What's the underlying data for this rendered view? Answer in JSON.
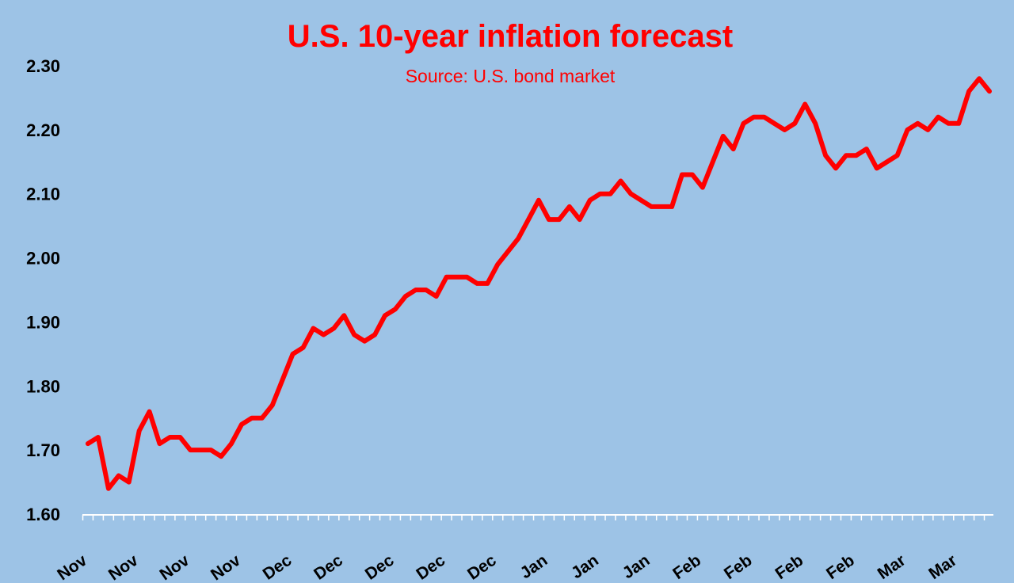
{
  "chart_data": {
    "type": "line",
    "title": "U.S. 10-year inflation forecast",
    "subtitle": "Source: U.S. bond market",
    "xlabel": "",
    "ylabel": "",
    "ylim": [
      1.6,
      2.3
    ],
    "yticks": [
      "1.60",
      "1.70",
      "1.80",
      "1.90",
      "2.00",
      "2.10",
      "2.20",
      "2.30"
    ],
    "ytick_values": [
      1.6,
      1.7,
      1.8,
      1.9,
      2.0,
      2.1,
      2.2,
      2.3
    ],
    "xtick_labels": [
      "Nov",
      "Nov",
      "Nov",
      "Nov",
      "Dec",
      "Dec",
      "Dec",
      "Dec",
      "Dec",
      "Jan",
      "Jan",
      "Jan",
      "Feb",
      "Feb",
      "Feb",
      "Feb",
      "Mar",
      "Mar"
    ],
    "grid": false,
    "line_color": "#ff0000",
    "background_color": "#9dc3e6",
    "series": [
      {
        "name": "10-year inflation forecast",
        "values": [
          1.71,
          1.72,
          1.64,
          1.66,
          1.65,
          1.73,
          1.76,
          1.71,
          1.72,
          1.72,
          1.7,
          1.7,
          1.7,
          1.69,
          1.71,
          1.74,
          1.75,
          1.75,
          1.77,
          1.81,
          1.85,
          1.86,
          1.89,
          1.88,
          1.89,
          1.91,
          1.88,
          1.87,
          1.88,
          1.91,
          1.92,
          1.94,
          1.95,
          1.95,
          1.94,
          1.97,
          1.97,
          1.97,
          1.96,
          1.96,
          1.99,
          2.01,
          2.03,
          2.06,
          2.09,
          2.06,
          2.06,
          2.08,
          2.06,
          2.09,
          2.1,
          2.1,
          2.12,
          2.1,
          2.09,
          2.08,
          2.08,
          2.08,
          2.13,
          2.13,
          2.11,
          2.15,
          2.19,
          2.17,
          2.21,
          2.22,
          2.22,
          2.21,
          2.2,
          2.21,
          2.24,
          2.21,
          2.16,
          2.14,
          2.16,
          2.16,
          2.17,
          2.14,
          2.15,
          2.16,
          2.2,
          2.21,
          2.2,
          2.22,
          2.21,
          2.21,
          2.26,
          2.28,
          2.26
        ]
      }
    ]
  }
}
